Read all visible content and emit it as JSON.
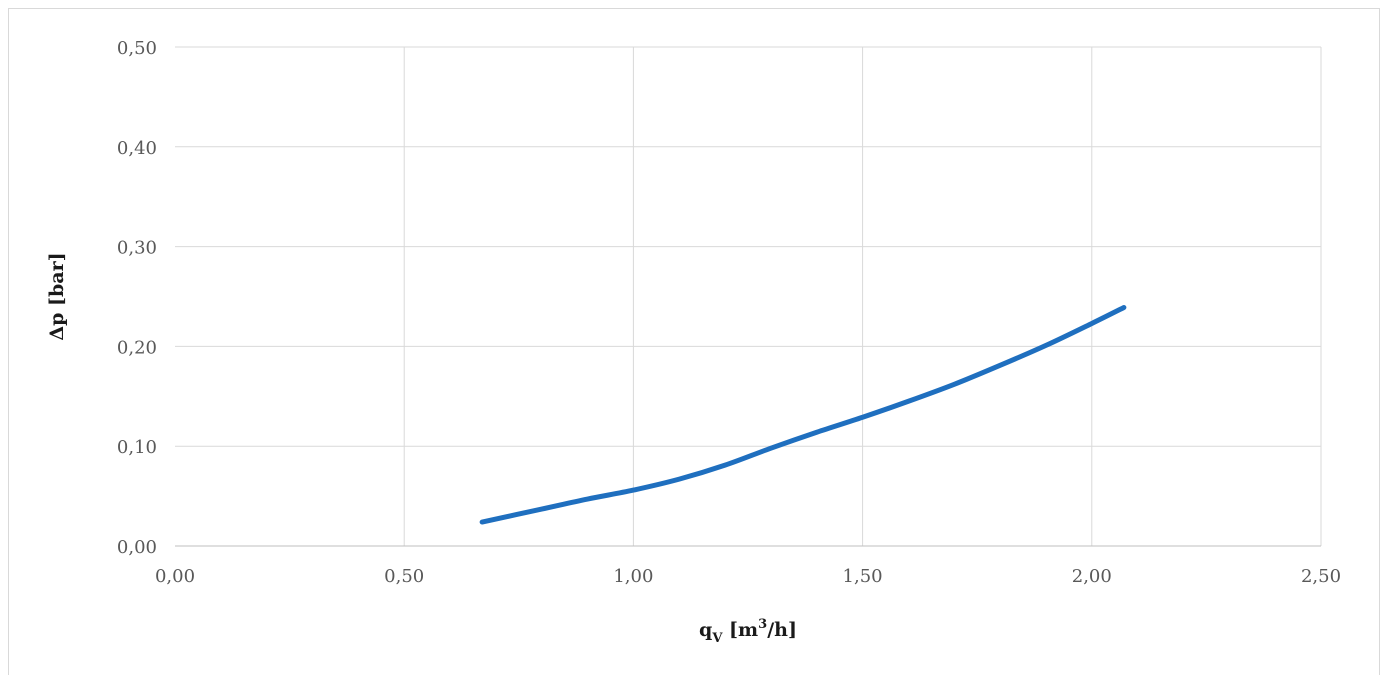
{
  "chart_data": {
    "type": "line",
    "title": "",
    "xlabel": {
      "main": "q",
      "subscript": "V",
      "unit_prefix": " [m",
      "superscript": "3",
      "unit_suffix": "/h]"
    },
    "ylabel": "Δp [bar]",
    "xlim": [
      0,
      2.5
    ],
    "ylim": [
      0,
      0.5
    ],
    "x_ticks": [
      {
        "value": 0.0,
        "label": "0,00"
      },
      {
        "value": 0.5,
        "label": "0,50"
      },
      {
        "value": 1.0,
        "label": "1,00"
      },
      {
        "value": 1.5,
        "label": "1,50"
      },
      {
        "value": 2.0,
        "label": "2,00"
      },
      {
        "value": 2.5,
        "label": "2,50"
      }
    ],
    "y_ticks": [
      {
        "value": 0.0,
        "label": "0,00"
      },
      {
        "value": 0.1,
        "label": "0,10"
      },
      {
        "value": 0.2,
        "label": "0,20"
      },
      {
        "value": 0.3,
        "label": "0,30"
      },
      {
        "value": 0.4,
        "label": "0,40"
      },
      {
        "value": 0.5,
        "label": "0,50"
      }
    ],
    "grid": true,
    "legend": "none",
    "series": [
      {
        "color": "#1f6fbf",
        "x": [
          0.67,
          0.8,
          0.9,
          1.0,
          1.1,
          1.2,
          1.3,
          1.4,
          1.5,
          1.6,
          1.7,
          1.8,
          1.9,
          2.0,
          2.07
        ],
        "y": [
          0.024,
          0.037,
          0.047,
          0.056,
          0.067,
          0.081,
          0.098,
          0.114,
          0.129,
          0.145,
          0.162,
          0.181,
          0.201,
          0.223,
          0.239
        ]
      }
    ]
  }
}
